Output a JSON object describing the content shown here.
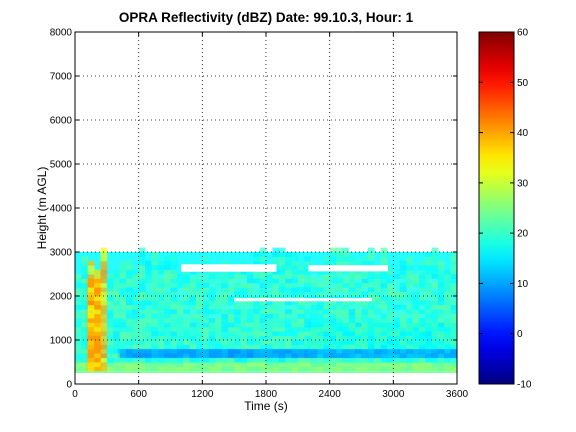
{
  "chart_data": {
    "type": "heatmap",
    "title": "OPRA Reflectivity (dBZ)  Date: 99.10.3, Hour: 1",
    "xlabel": "Time (s)",
    "ylabel": "Height (m AGL)",
    "xlim": [
      0,
      3600
    ],
    "ylim": [
      0,
      8000
    ],
    "x_ticks": [
      "0",
      "600",
      "1200",
      "1800",
      "2400",
      "3000",
      "3600"
    ],
    "y_ticks": [
      "0",
      "1000",
      "2000",
      "3000",
      "4000",
      "5000",
      "6000",
      "7000",
      "8000"
    ],
    "grid": true,
    "colorbar": {
      "colormap": "jet",
      "range": [
        -10,
        60
      ],
      "ticks": [
        "-10",
        "0",
        "10",
        "20",
        "30",
        "40",
        "50",
        "60"
      ]
    },
    "regions": [
      {
        "x": [
          0,
          3600
        ],
        "y": [
          250,
          450
        ],
        "dbz": 24
      },
      {
        "x": [
          0,
          3600
        ],
        "y": [
          450,
          2500
        ],
        "dbz": 18
      },
      {
        "x": [
          400,
          3600
        ],
        "y": [
          600,
          800
        ],
        "dbz": 10
      },
      {
        "x": [
          100,
          250
        ],
        "y": [
          300,
          2400
        ],
        "dbz": 40
      },
      {
        "x": [
          0,
          3600
        ],
        "y": [
          2500,
          3000
        ],
        "dbz": 16
      },
      {
        "x": [
          2200,
          3600
        ],
        "y": [
          600,
          1400
        ],
        "dbz": 16
      }
    ]
  }
}
